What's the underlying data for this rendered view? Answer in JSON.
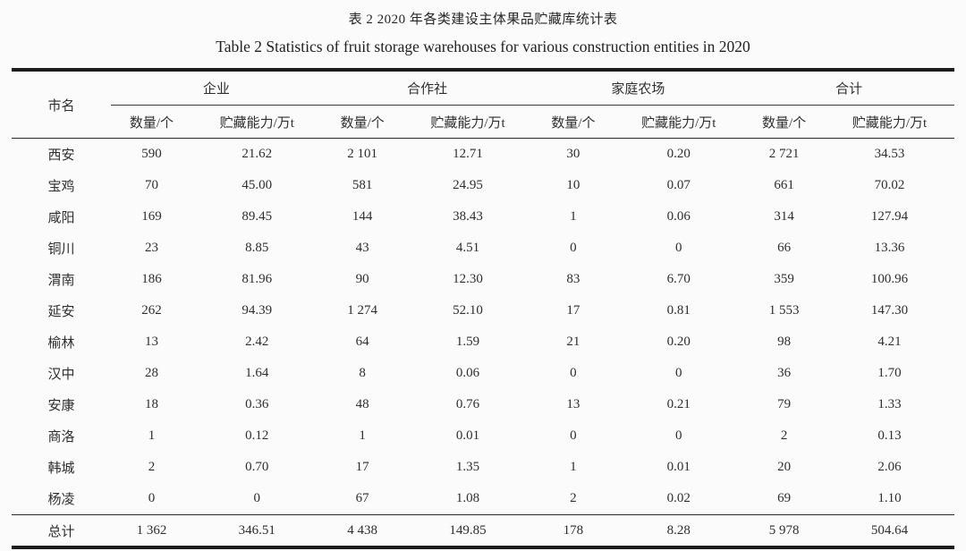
{
  "page": {
    "title_zh": "表 2 2020 年各类建设主体果品贮藏库统计表",
    "title_en": "Table 2 Statistics of fruit storage warehouses for various construction entities in 2020"
  },
  "table": {
    "city_header": "市名",
    "groups": [
      {
        "label": "企业",
        "sub": [
          "数量/个",
          "贮藏能力/万t"
        ]
      },
      {
        "label": "合作社",
        "sub": [
          "数量/个",
          "贮藏能力/万t"
        ]
      },
      {
        "label": "家庭农场",
        "sub": [
          "数量/个",
          "贮藏能力/万t"
        ]
      },
      {
        "label": "合计",
        "sub": [
          "数量/个",
          "贮藏能力/万t"
        ]
      }
    ],
    "rows": [
      {
        "city": "西安",
        "values": [
          "590",
          "21.62",
          "2 101",
          "12.71",
          "30",
          "0.20",
          "2 721",
          "34.53"
        ]
      },
      {
        "city": "宝鸡",
        "values": [
          "70",
          "45.00",
          "581",
          "24.95",
          "10",
          "0.07",
          "661",
          "70.02"
        ]
      },
      {
        "city": "咸阳",
        "values": [
          "169",
          "89.45",
          "144",
          "38.43",
          "1",
          "0.06",
          "314",
          "127.94"
        ]
      },
      {
        "city": "铜川",
        "values": [
          "23",
          "8.85",
          "43",
          "4.51",
          "0",
          "0",
          "66",
          "13.36"
        ]
      },
      {
        "city": "渭南",
        "values": [
          "186",
          "81.96",
          "90",
          "12.30",
          "83",
          "6.70",
          "359",
          "100.96"
        ]
      },
      {
        "city": "延安",
        "values": [
          "262",
          "94.39",
          "1 274",
          "52.10",
          "17",
          "0.81",
          "1 553",
          "147.30"
        ]
      },
      {
        "city": "榆林",
        "values": [
          "13",
          "2.42",
          "64",
          "1.59",
          "21",
          "0.20",
          "98",
          "4.21"
        ]
      },
      {
        "city": "汉中",
        "values": [
          "28",
          "1.64",
          "8",
          "0.06",
          "0",
          "0",
          "36",
          "1.70"
        ]
      },
      {
        "city": "安康",
        "values": [
          "18",
          "0.36",
          "48",
          "0.76",
          "13",
          "0.21",
          "79",
          "1.33"
        ]
      },
      {
        "city": "商洛",
        "values": [
          "1",
          "0.12",
          "1",
          "0.01",
          "0",
          "0",
          "2",
          "0.13"
        ]
      },
      {
        "city": "韩城",
        "values": [
          "2",
          "0.70",
          "17",
          "1.35",
          "1",
          "0.01",
          "20",
          "2.06"
        ]
      },
      {
        "city": "杨凌",
        "values": [
          "0",
          "0",
          "67",
          "1.08",
          "2",
          "0.02",
          "69",
          "1.10"
        ]
      }
    ],
    "total_row": {
      "city": "总计",
      "values": [
        "1 362",
        "346.51",
        "4 438",
        "149.85",
        "178",
        "8.28",
        "5 978",
        "504.64"
      ]
    }
  }
}
